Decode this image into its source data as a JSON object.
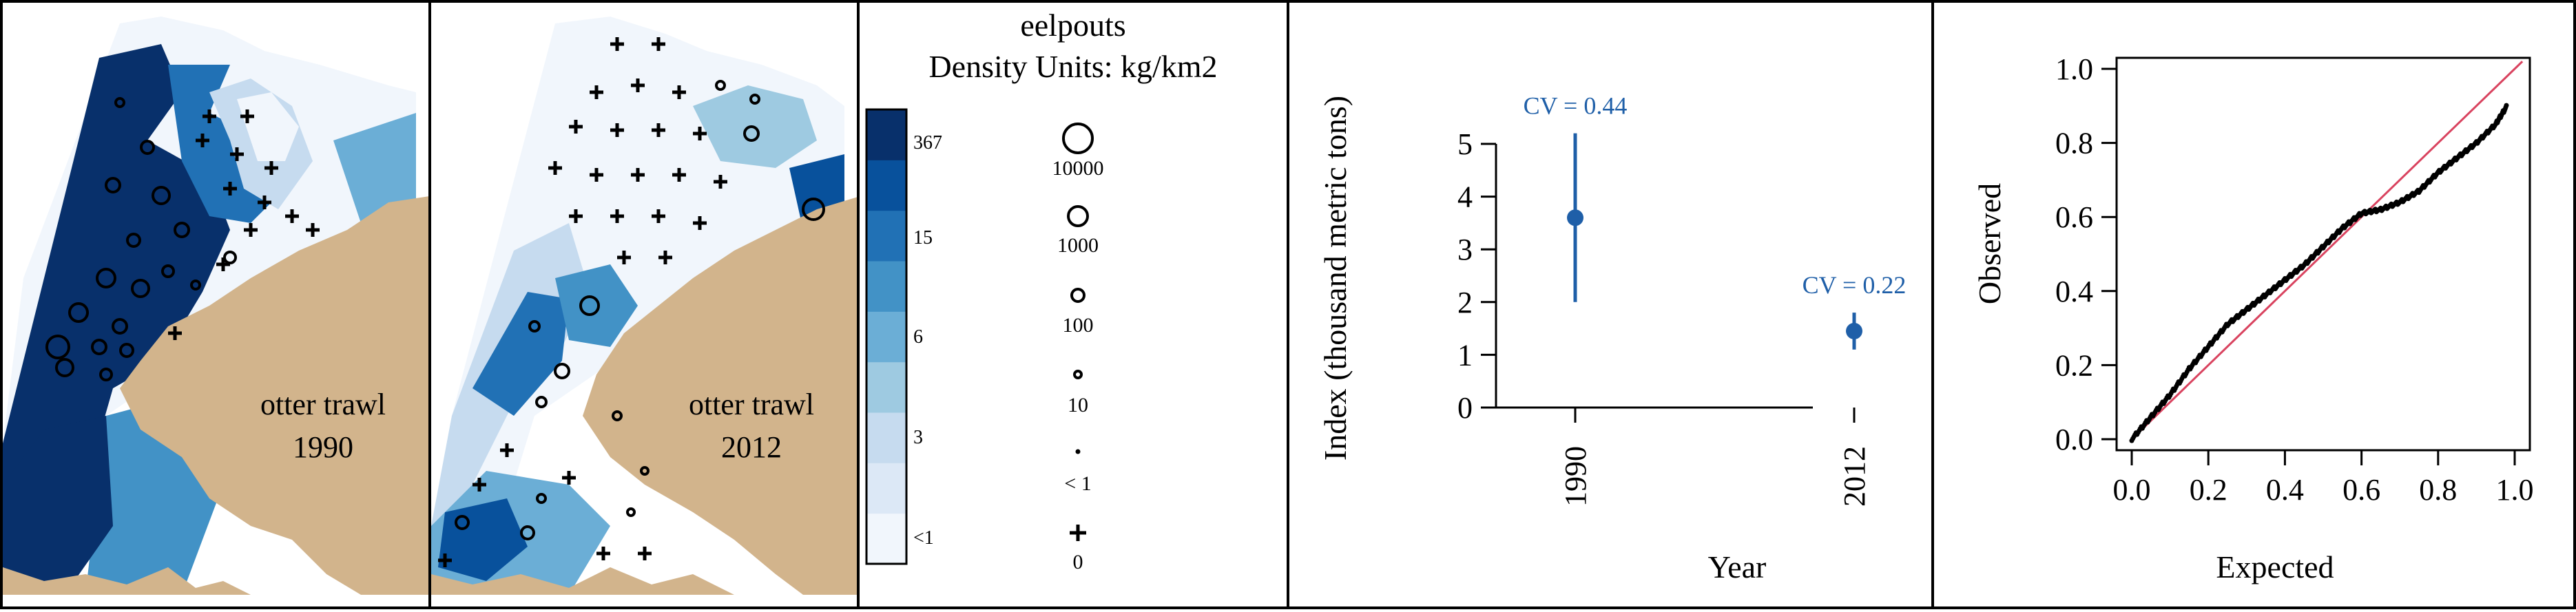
{
  "colors": {
    "land": "#d2b48c",
    "density": [
      "#f1f6fc",
      "#dce8f6",
      "#c6dbef",
      "#9ecae1",
      "#6baed6",
      "#4292c6",
      "#2171b5",
      "#08519c",
      "#08306b"
    ],
    "ci": "#1f5fa8",
    "qq_line": "#d9435f",
    "points": "#000000"
  },
  "maps": [
    {
      "gear": "otter trawl",
      "year": "1990"
    },
    {
      "gear": "otter trawl",
      "year": "2012"
    }
  ],
  "legend": {
    "title": "eelpouts",
    "units": "Density Units: kg/km2",
    "color_tick_labels": [
      "367",
      "15",
      "6",
      "3",
      "<1"
    ],
    "size_labels": [
      "10000",
      "1000",
      "100",
      "10",
      "< 1",
      "0"
    ]
  },
  "chart_data": [
    {
      "type": "scatter",
      "subtype": "point-with-error-bar",
      "categories": [
        "1990",
        "2012"
      ],
      "values": [
        3.6,
        1.45
      ],
      "ci_lower": [
        2.0,
        1.1
      ],
      "ci_upper": [
        5.2,
        1.8
      ],
      "annotations": [
        "CV = 0.44",
        "CV = 0.22"
      ],
      "xlabel": "Year",
      "ylabel": "Index (thousand metric tons)",
      "ylim": [
        0,
        5
      ],
      "yticks": [
        "0",
        "1",
        "2",
        "3",
        "4",
        "5"
      ],
      "grid": false
    },
    {
      "type": "scatter",
      "subtype": "qq-plot",
      "xlabel": "Expected",
      "ylabel": "Observed",
      "xlim": [
        0,
        1
      ],
      "ylim": [
        0,
        1
      ],
      "xticks": [
        "0.0",
        "0.2",
        "0.4",
        "0.6",
        "0.8",
        "1.0"
      ],
      "yticks": [
        "0.0",
        "0.2",
        "0.4",
        "0.6",
        "0.8",
        "1.0"
      ],
      "curve": [
        [
          0,
          0
        ],
        [
          0.05,
          0.06
        ],
        [
          0.1,
          0.12
        ],
        [
          0.15,
          0.19
        ],
        [
          0.2,
          0.25
        ],
        [
          0.25,
          0.31
        ],
        [
          0.3,
          0.35
        ],
        [
          0.35,
          0.39
        ],
        [
          0.4,
          0.43
        ],
        [
          0.45,
          0.47
        ],
        [
          0.5,
          0.52
        ],
        [
          0.55,
          0.57
        ],
        [
          0.6,
          0.61
        ],
        [
          0.65,
          0.62
        ],
        [
          0.7,
          0.64
        ],
        [
          0.75,
          0.67
        ],
        [
          0.8,
          0.72
        ],
        [
          0.85,
          0.76
        ],
        [
          0.9,
          0.8
        ],
        [
          0.95,
          0.85
        ],
        [
          0.98,
          0.9
        ]
      ],
      "grid": false
    }
  ]
}
